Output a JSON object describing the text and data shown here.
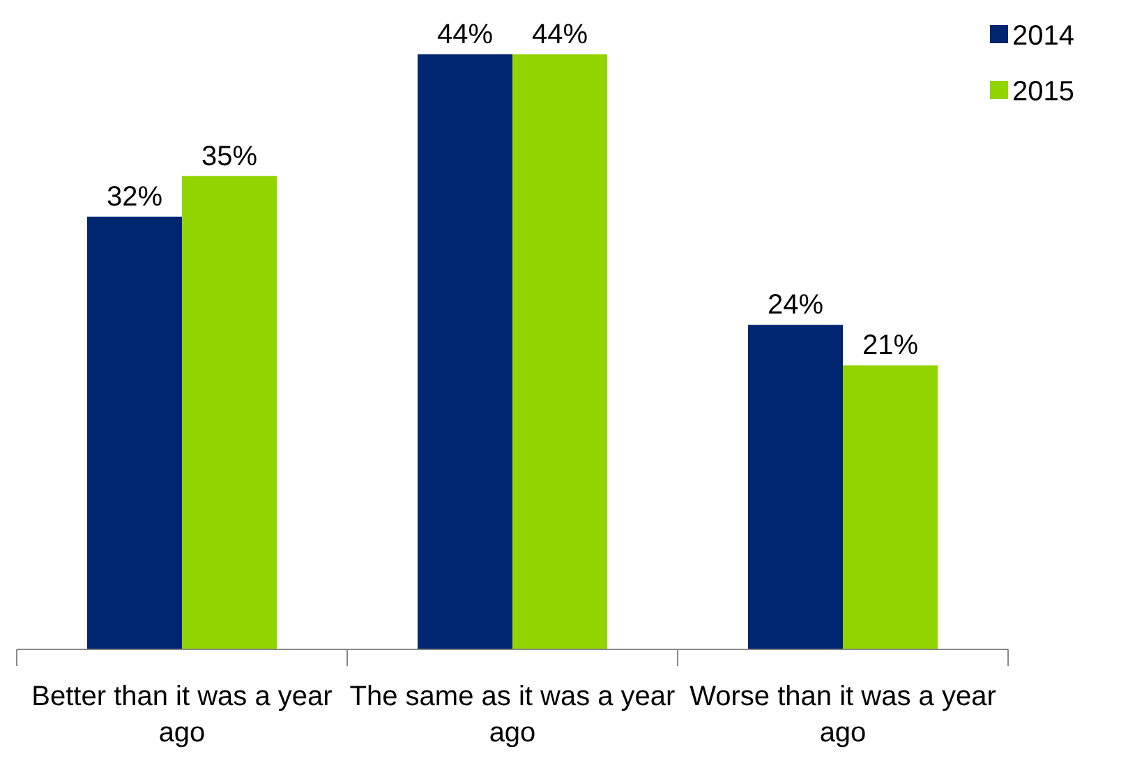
{
  "chart_data": {
    "type": "bar",
    "categories": [
      "Better than it was a year ago",
      "The same as it was a year ago",
      "Worse than it was a year ago"
    ],
    "series": [
      {
        "name": "2014",
        "color": "#002570",
        "values": [
          32,
          44,
          24
        ],
        "value_labels": [
          "32%",
          "44%",
          "24%"
        ]
      },
      {
        "name": "2015",
        "color": "#92d400",
        "values": [
          35,
          44,
          21
        ],
        "value_labels": [
          "35%",
          "44%",
          "21%"
        ]
      }
    ],
    "legend": "top right",
    "tick_labels": "x"
  }
}
